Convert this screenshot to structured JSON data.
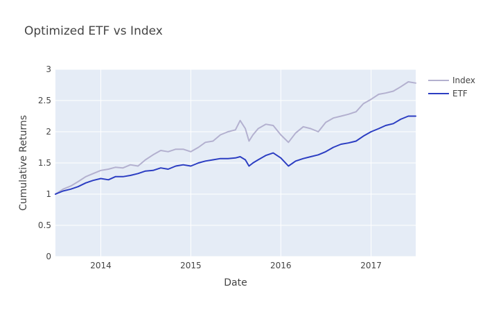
{
  "chart_data": {
    "type": "line",
    "title": "Optimized ETF vs Index",
    "xlabel": "Date",
    "ylabel": "Cumulative Returns",
    "xlim": [
      "2013-07-01",
      "2017-07-01"
    ],
    "ylim": [
      0,
      3
    ],
    "y_ticks": [
      0,
      0.5,
      1,
      1.5,
      2,
      2.5,
      3
    ],
    "y_tick_labels": [
      "0",
      "0.5",
      "1",
      "1.5",
      "2",
      "2.5",
      "3"
    ],
    "x_ticks": [
      "2014-01-01",
      "2015-01-01",
      "2016-01-01",
      "2017-01-01"
    ],
    "x_tick_labels": [
      "2014",
      "2015",
      "2016",
      "2017"
    ],
    "grid": true,
    "legend_position": "top-right",
    "plot_background": "#e5ecf6",
    "series": [
      {
        "name": "Index",
        "color": "#b3b0cf",
        "points": [
          [
            "2013-07-01",
            1.0
          ],
          [
            "2013-08-01",
            1.08
          ],
          [
            "2013-09-01",
            1.13
          ],
          [
            "2013-10-01",
            1.2
          ],
          [
            "2013-11-01",
            1.28
          ],
          [
            "2013-12-01",
            1.33
          ],
          [
            "2014-01-01",
            1.38
          ],
          [
            "2014-02-01",
            1.4
          ],
          [
            "2014-03-01",
            1.43
          ],
          [
            "2014-04-01",
            1.42
          ],
          [
            "2014-05-01",
            1.47
          ],
          [
            "2014-06-01",
            1.45
          ],
          [
            "2014-07-01",
            1.55
          ],
          [
            "2014-08-01",
            1.63
          ],
          [
            "2014-09-01",
            1.7
          ],
          [
            "2014-10-01",
            1.68
          ],
          [
            "2014-11-01",
            1.72
          ],
          [
            "2014-12-01",
            1.72
          ],
          [
            "2015-01-01",
            1.68
          ],
          [
            "2015-02-01",
            1.75
          ],
          [
            "2015-03-01",
            1.83
          ],
          [
            "2015-04-01",
            1.85
          ],
          [
            "2015-05-01",
            1.95
          ],
          [
            "2015-06-01",
            2.0
          ],
          [
            "2015-07-01",
            2.03
          ],
          [
            "2015-07-20",
            2.18
          ],
          [
            "2015-08-10",
            2.05
          ],
          [
            "2015-08-25",
            1.85
          ],
          [
            "2015-09-10",
            1.95
          ],
          [
            "2015-10-01",
            2.05
          ],
          [
            "2015-11-01",
            2.12
          ],
          [
            "2015-12-01",
            2.1
          ],
          [
            "2016-01-01",
            1.95
          ],
          [
            "2016-02-01",
            1.83
          ],
          [
            "2016-03-01",
            1.98
          ],
          [
            "2016-04-01",
            2.08
          ],
          [
            "2016-05-01",
            2.05
          ],
          [
            "2016-06-01",
            2.0
          ],
          [
            "2016-07-01",
            2.15
          ],
          [
            "2016-08-01",
            2.22
          ],
          [
            "2016-09-01",
            2.25
          ],
          [
            "2016-10-01",
            2.28
          ],
          [
            "2016-11-01",
            2.32
          ],
          [
            "2016-12-01",
            2.45
          ],
          [
            "2017-01-01",
            2.52
          ],
          [
            "2017-02-01",
            2.6
          ],
          [
            "2017-03-01",
            2.62
          ],
          [
            "2017-04-01",
            2.65
          ],
          [
            "2017-05-01",
            2.72
          ],
          [
            "2017-06-01",
            2.8
          ],
          [
            "2017-07-01",
            2.78
          ]
        ]
      },
      {
        "name": "ETF",
        "color": "#2b3dc2",
        "points": [
          [
            "2013-07-01",
            1.0
          ],
          [
            "2013-08-01",
            1.05
          ],
          [
            "2013-09-01",
            1.08
          ],
          [
            "2013-10-01",
            1.12
          ],
          [
            "2013-11-01",
            1.18
          ],
          [
            "2013-12-01",
            1.22
          ],
          [
            "2014-01-01",
            1.25
          ],
          [
            "2014-02-01",
            1.23
          ],
          [
            "2014-03-01",
            1.28
          ],
          [
            "2014-04-01",
            1.28
          ],
          [
            "2014-05-01",
            1.3
          ],
          [
            "2014-06-01",
            1.33
          ],
          [
            "2014-07-01",
            1.37
          ],
          [
            "2014-08-01",
            1.38
          ],
          [
            "2014-09-01",
            1.42
          ],
          [
            "2014-10-01",
            1.4
          ],
          [
            "2014-11-01",
            1.45
          ],
          [
            "2014-12-01",
            1.47
          ],
          [
            "2015-01-01",
            1.45
          ],
          [
            "2015-02-01",
            1.5
          ],
          [
            "2015-03-01",
            1.53
          ],
          [
            "2015-04-01",
            1.55
          ],
          [
            "2015-05-01",
            1.57
          ],
          [
            "2015-06-01",
            1.57
          ],
          [
            "2015-07-01",
            1.58
          ],
          [
            "2015-07-20",
            1.6
          ],
          [
            "2015-08-10",
            1.55
          ],
          [
            "2015-08-25",
            1.45
          ],
          [
            "2015-09-10",
            1.5
          ],
          [
            "2015-10-01",
            1.55
          ],
          [
            "2015-11-01",
            1.62
          ],
          [
            "2015-12-01",
            1.66
          ],
          [
            "2016-01-01",
            1.58
          ],
          [
            "2016-02-01",
            1.45
          ],
          [
            "2016-03-01",
            1.53
          ],
          [
            "2016-04-01",
            1.57
          ],
          [
            "2016-05-01",
            1.6
          ],
          [
            "2016-06-01",
            1.63
          ],
          [
            "2016-07-01",
            1.68
          ],
          [
            "2016-08-01",
            1.75
          ],
          [
            "2016-09-01",
            1.8
          ],
          [
            "2016-10-01",
            1.82
          ],
          [
            "2016-11-01",
            1.85
          ],
          [
            "2016-12-01",
            1.93
          ],
          [
            "2017-01-01",
            2.0
          ],
          [
            "2017-02-01",
            2.05
          ],
          [
            "2017-03-01",
            2.1
          ],
          [
            "2017-04-01",
            2.13
          ],
          [
            "2017-05-01",
            2.2
          ],
          [
            "2017-06-01",
            2.25
          ],
          [
            "2017-07-01",
            2.25
          ]
        ]
      }
    ]
  }
}
